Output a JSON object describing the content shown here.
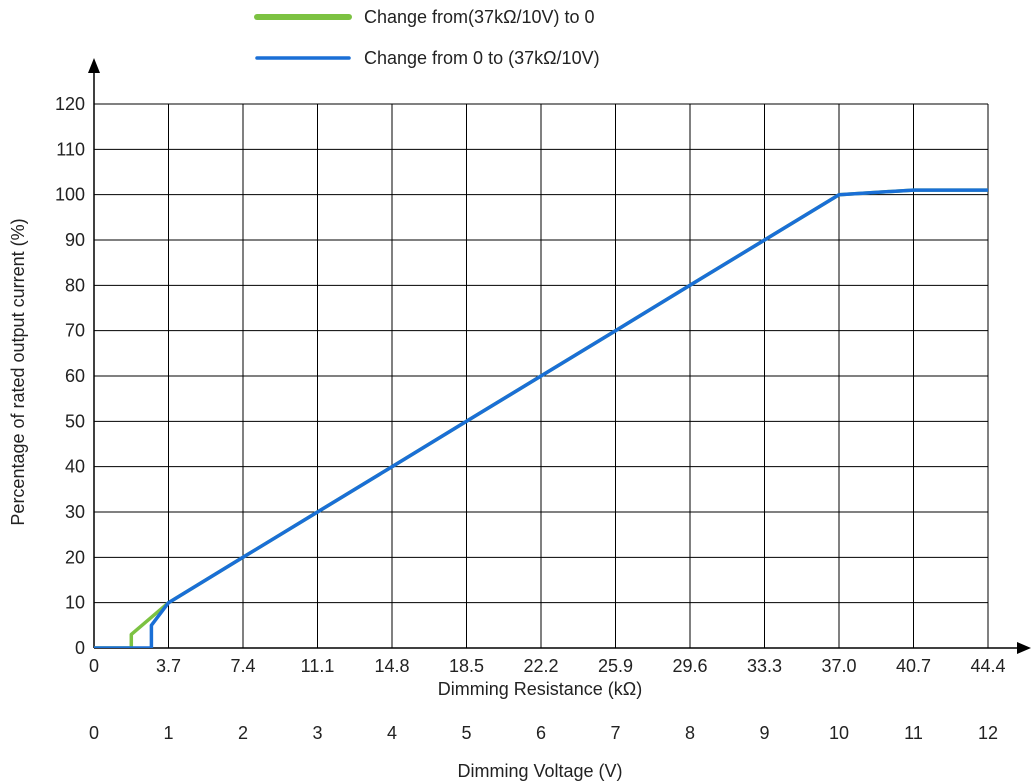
{
  "chart_data": {
    "type": "line",
    "legend_placement": "top",
    "grid": true,
    "xlabel": "Dimming Resistance (kΩ)",
    "ylabel": "Percentage of rated output current (%)",
    "x2label": "Dimming Voltage (V)",
    "xlim": [
      0,
      12
    ],
    "ylim": [
      0,
      120
    ],
    "x_ticks": [
      0,
      1,
      2,
      3,
      4,
      5,
      6,
      7,
      8,
      9,
      10,
      11,
      12
    ],
    "x_tick_labels": [
      "0",
      "3.7",
      "7.4",
      "11.1",
      "14.8",
      "18.5",
      "22.2",
      "25.9",
      "29.6",
      "33.3",
      "37.0",
      "40.7",
      "44.4"
    ],
    "x2_tick_labels": [
      "0",
      "1",
      "2",
      "3",
      "4",
      "5",
      "6",
      "7",
      "8",
      "9",
      "10",
      "11",
      "12"
    ],
    "y_ticks": [
      0,
      10,
      20,
      30,
      40,
      50,
      60,
      70,
      80,
      90,
      100,
      110,
      120
    ],
    "y_tick_labels": [
      "0",
      "10",
      "20",
      "30",
      "40",
      "50",
      "60",
      "70",
      "80",
      "90",
      "100",
      "110",
      "120"
    ],
    "series": [
      {
        "name": "Change from(37kΩ/10V) to 0",
        "color": "#7cc242",
        "x": [
          0,
          0.5,
          0.5,
          1,
          2,
          3,
          4,
          5,
          6,
          7,
          8,
          9,
          10,
          11,
          12
        ],
        "y": [
          0,
          0,
          3,
          10,
          20,
          30,
          40,
          50,
          60,
          70,
          80,
          90,
          100,
          101,
          101
        ]
      },
      {
        "name": "Change from 0 to (37kΩ/10V)",
        "color": "#1a6fd6",
        "x": [
          0,
          0.77,
          0.77,
          1,
          2,
          3,
          4,
          5,
          6,
          7,
          8,
          9,
          10,
          11,
          12
        ],
        "y": [
          0,
          0,
          5,
          10,
          20,
          30,
          40,
          50,
          60,
          70,
          80,
          90,
          100,
          101,
          101
        ]
      }
    ]
  }
}
